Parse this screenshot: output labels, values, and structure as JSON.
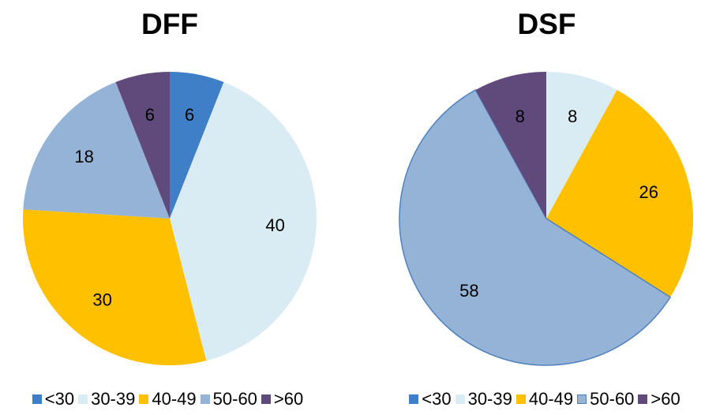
{
  "chart_data": [
    {
      "type": "pie",
      "title": "DFF",
      "categories": [
        "<30",
        "30-39",
        "40-49",
        "50-60",
        ">60"
      ],
      "values": [
        6,
        40,
        30,
        18,
        6
      ],
      "colors": [
        "#3e7fc8",
        "#d9ecf3",
        "#ffc000",
        "#95b3d7",
        "#604a7b"
      ],
      "legend": "bottom"
    },
    {
      "type": "pie",
      "title": "DSF",
      "categories": [
        "<30",
        "30-39",
        "40-49",
        "50-60",
        ">60"
      ],
      "values": [
        0,
        8,
        26,
        58,
        8
      ],
      "colors": [
        "#3e7fc8",
        "#d9ecf3",
        "#ffc000",
        "#95b3d7",
        "#604a7b"
      ],
      "legend": "bottom"
    }
  ]
}
